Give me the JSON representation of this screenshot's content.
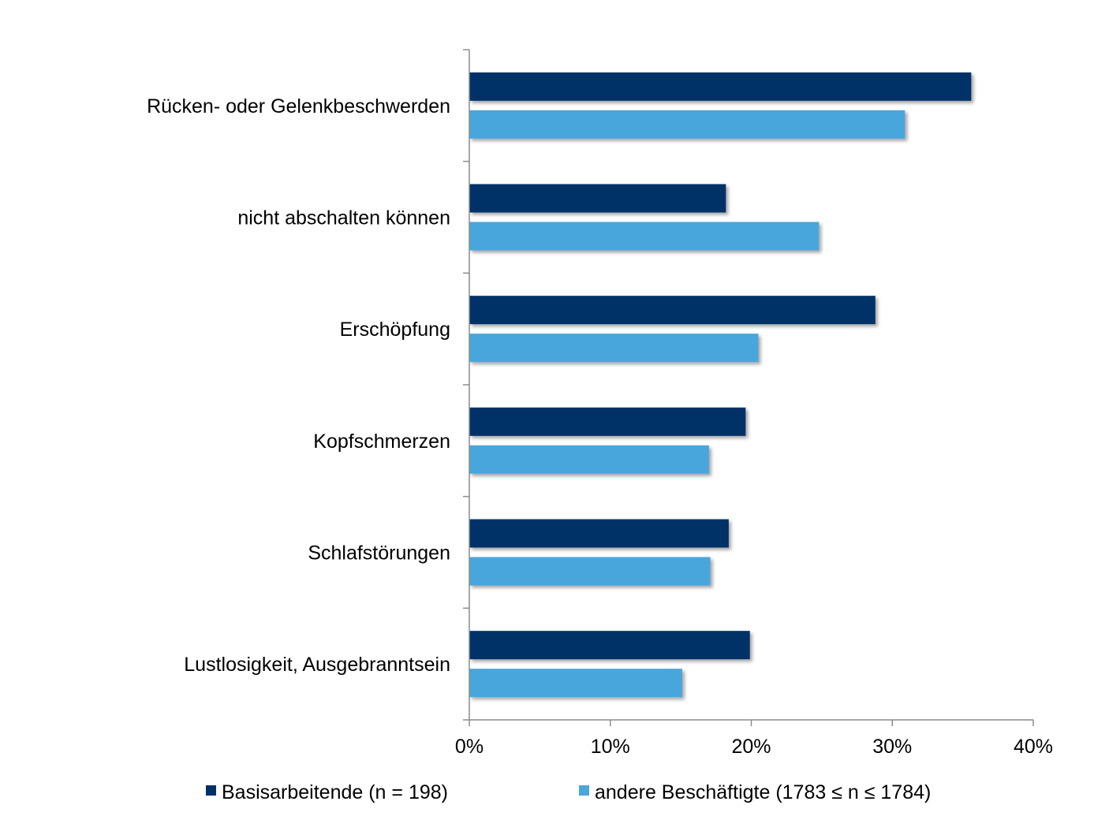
{
  "chart_data": {
    "type": "bar",
    "orientation": "horizontal",
    "categories": [
      "Rücken- oder Gelenkbeschwerden",
      "nicht abschalten können",
      "Erschöpfung",
      "Kopfschmerzen",
      "Schlafstörungen",
      "Lustlosigkeit, Ausgebranntsein"
    ],
    "series": [
      {
        "name": "Basisarbeitende (n = 198)",
        "color": "#003067",
        "values": [
          35.6,
          18.2,
          28.8,
          19.6,
          18.4,
          19.9
        ]
      },
      {
        "name": "andere Beschäftigte (1783 ≤ n ≤ 1784)",
        "color": "#4aa6dc",
        "values": [
          30.9,
          24.8,
          20.5,
          17.0,
          17.1,
          15.1
        ]
      }
    ],
    "xlim": [
      0,
      40
    ],
    "xticks": [
      0,
      10,
      20,
      30,
      40
    ],
    "xtick_labels": [
      "0%",
      "10%",
      "20%",
      "30%",
      "40%"
    ],
    "title": "",
    "xlabel": "",
    "ylabel": "",
    "grid": false,
    "legend_position": "bottom"
  }
}
